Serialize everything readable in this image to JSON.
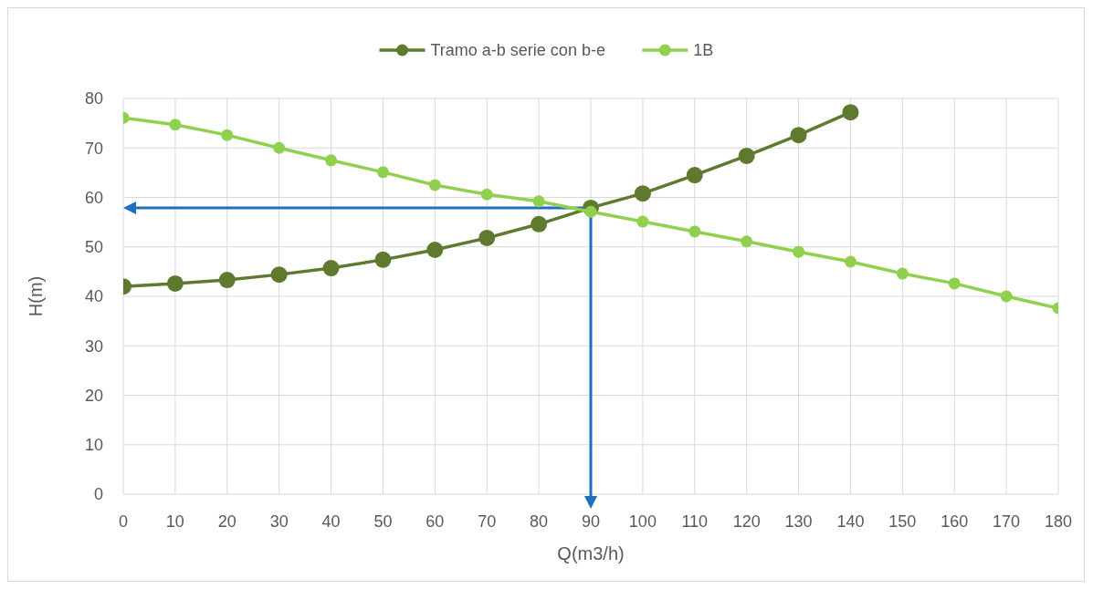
{
  "chart_data": {
    "type": "line",
    "xlabel": "Q(m3/h)",
    "ylabel": "H(m)",
    "x": [
      0,
      10,
      20,
      30,
      40,
      50,
      60,
      70,
      80,
      90,
      100,
      110,
      120,
      130,
      140,
      150,
      160,
      170,
      180
    ],
    "series": [
      {
        "name": "Tramo a-b serie con b-e",
        "color": "#5f7a2e",
        "values": [
          42.0,
          42.6,
          43.3,
          44.4,
          45.7,
          47.4,
          49.4,
          51.8,
          54.6,
          57.9,
          60.8,
          64.5,
          68.4,
          72.6,
          77.2,
          null,
          null,
          null,
          null
        ]
      },
      {
        "name": "1B",
        "color": "#8fd14f",
        "values": [
          76.1,
          74.7,
          72.6,
          70.0,
          67.5,
          65.1,
          62.5,
          60.6,
          59.2,
          57.1,
          55.1,
          53.1,
          51.1,
          49.0,
          47.0,
          44.6,
          42.6,
          40.0,
          37.6
        ]
      }
    ],
    "xlim": [
      0,
      180
    ],
    "xticks": [
      0,
      10,
      20,
      30,
      40,
      50,
      60,
      70,
      80,
      90,
      100,
      110,
      120,
      130,
      140,
      150,
      160,
      170,
      180
    ],
    "ylim": [
      0,
      80
    ],
    "yticks": [
      0,
      10,
      20,
      30,
      40,
      50,
      60,
      70,
      80
    ],
    "grid": true,
    "legend": "top",
    "marker": "circle",
    "line_style": "solid"
  }
}
